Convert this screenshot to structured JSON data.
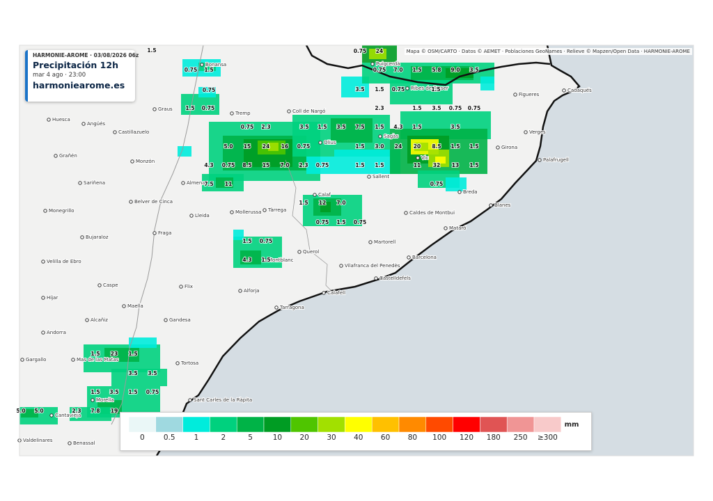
{
  "info_box": {
    "model_run": "HARMONIE-AROME · 03/08/2026 06z",
    "title": "Precipitación 12h",
    "valid_time": "mar 4 ago · 23:00",
    "site": "harmoniearome.es"
  },
  "attribution": "Mapa © OSM/CARTO · Datos © AEMET · Poblaciones GeoNames · Relieve © Mapzen/Open Data · HARMONIE-AROME",
  "places": [
    "Huesca",
    "Angüés",
    "Castillazuelo",
    "Graus",
    "Bonansa",
    "Tremp",
    "Coll de Nargó",
    "Grañén",
    "Monzón",
    "Sariñena",
    "Almenar",
    "Belver de Cinca",
    "Monegrillo",
    "Lleida",
    "Mollerussa",
    "Tàrrega",
    "Fraga",
    "Bujaraloz",
    "Calaf",
    "Querol",
    "Montblanc",
    "Velilla de Ebro",
    "Caspe",
    "Flix",
    "Alforja",
    "Vilafranca del Penedès",
    "Martorell",
    "Barcelona",
    "Castelldefels",
    "Calafell",
    "Tarragona",
    "Híjar",
    "Maella",
    "Alcañiz",
    "Gandesa",
    "Andorra",
    "Gargallo",
    "Mas de las Matas",
    "Tortosa",
    "Sant Carles de la Ràpita",
    "Morella",
    "Cantavieja",
    "Valdelinares",
    "Benassal",
    "Olius",
    "Sallent",
    "Caldes de Montbui",
    "Mataró",
    "Blanes",
    "Breda",
    "Vic",
    "Girona",
    "Figueres",
    "Cadaqués",
    "Verges",
    "Palafrugell",
    "Puigcerdà",
    "Ribes de Freser",
    "Sagàs"
  ],
  "precipitation_labels": [
    "1.5",
    "0.75",
    "1.5",
    "0.75",
    "1.5",
    "0.75",
    "0.75",
    "2.3",
    "3.5",
    "1.5",
    "3.5",
    "7.5",
    "1.5",
    "4.3",
    "1.5",
    "3.5",
    "5.0",
    "15",
    "24",
    "16",
    "0.75",
    "1.5",
    "3.0",
    "24",
    "20",
    "8.5",
    "1.5",
    "1.5",
    "4.3",
    "0.75",
    "8.5",
    "15",
    "7.0",
    "2.3",
    "0.75",
    "1.5",
    "1.5",
    "11",
    "32",
    "13",
    "1.5",
    "0.75",
    "7.5",
    "11",
    "1.5",
    "12",
    "7.0",
    "0.75",
    "1.5",
    "0.75",
    "1.5",
    "0.75",
    "4.3",
    "1.5",
    "3.5",
    "1.5",
    "0.75",
    "1.5",
    "0.75",
    "24",
    "0.75",
    "7.0",
    "1.5",
    "5.8",
    "9.0",
    "3.5",
    "1.5",
    "3.5",
    "0.75",
    "0.75",
    "2.3",
    "1.5",
    "23",
    "1.5",
    "3.5",
    "3.5",
    "1.5",
    "3.5",
    "1.5",
    "0.75",
    "2.3",
    "7.8",
    "19",
    "5.0",
    "5.0"
  ],
  "legend": {
    "unit": "mm",
    "labels": [
      "0",
      "0.5",
      "1",
      "2",
      "5",
      "10",
      "20",
      "30",
      "40",
      "60",
      "80",
      "100",
      "120",
      "180",
      "250",
      "≥300"
    ],
    "colors": [
      "#eaf7f7",
      "#9fd9e0",
      "#00ecdc",
      "#00d17e",
      "#00b347",
      "#009c23",
      "#4fc500",
      "#a2e000",
      "#ffff00",
      "#ffc000",
      "#ff8a00",
      "#ff4a00",
      "#ff0000",
      "#e05454",
      "#f09595",
      "#f8caca"
    ]
  }
}
